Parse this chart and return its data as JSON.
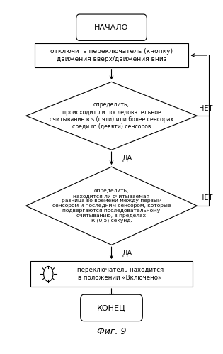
{
  "title": "Фиг. 9",
  "bg_color": "#ffffff",
  "line_color": "#000000",
  "text_color": "#000000",
  "start_text": "НАЧАЛО",
  "box1_text": "отключить переключатель (кнопку)\nдвижения вверх/движения вниз",
  "d1_text": "определить,\nпроисходит ли последовательное\nсчитывание в s (пяти) или более сенсорах\nсреди m (девяти) сенсоров",
  "d2_text": "определить,\nнаходится ли считываемая\nразница во времени между первым\nсенсором и последним сенсором, которые\nподвергаются последовательному\nсчитыванию, в пределах\nR (0,5) секунд.",
  "box2_text": "переключатель находится\nв положении «Включено»",
  "end_text": "КОНЕЦ",
  "da_label": "ДА",
  "net_label": "НЕТ"
}
